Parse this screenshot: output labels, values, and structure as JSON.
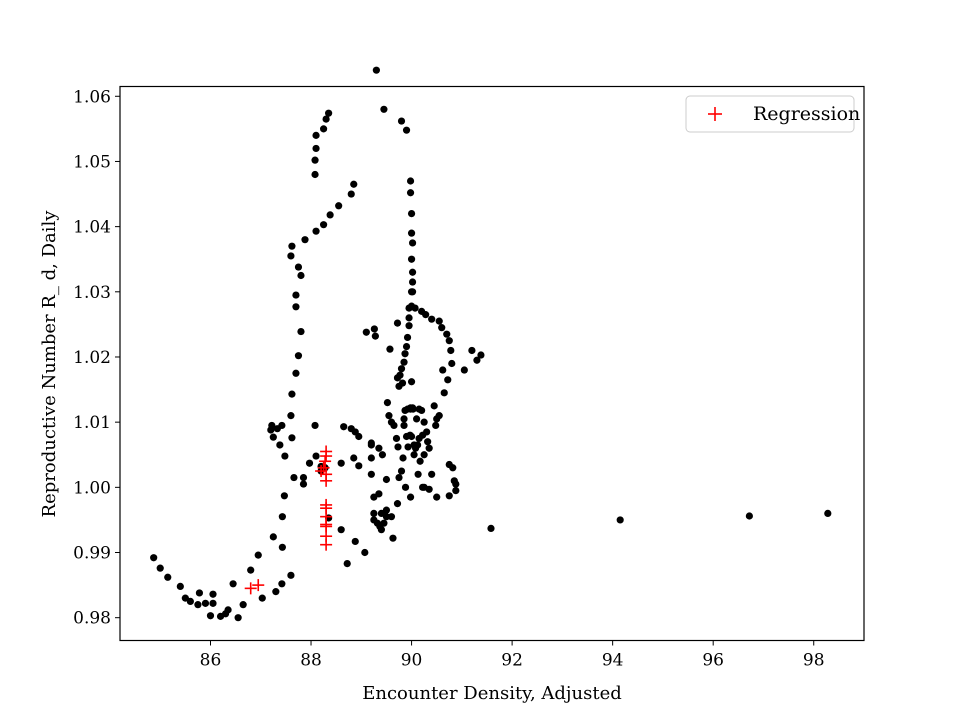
{
  "chart_data": {
    "type": "scatter",
    "title": "",
    "xlabel": "Encounter Density, Adjusted",
    "ylabel": "Reproductive Number R_ d, Daily",
    "xlim": [
      84.2,
      99.0
    ],
    "ylim": [
      0.9765,
      1.0615
    ],
    "xticks": [
      86,
      88,
      90,
      92,
      94,
      96,
      98
    ],
    "yticks": [
      0.98,
      0.99,
      1.0,
      1.01,
      1.02,
      1.03,
      1.04,
      1.05,
      1.06
    ],
    "xtick_labels": [
      "86",
      "88",
      "90",
      "92",
      "94",
      "96",
      "98"
    ],
    "ytick_labels": [
      "0.98",
      "0.99",
      "1.00",
      "1.01",
      "1.02",
      "1.03",
      "1.04",
      "1.05",
      "1.06"
    ],
    "grid": false,
    "legend_position": "top-right",
    "series": [
      {
        "marker": "dot",
        "color": "#000000",
        "points": [
          [
            84.87,
            0.9892
          ],
          [
            85.0,
            0.9876
          ],
          [
            85.15,
            0.9862
          ],
          [
            85.4,
            0.9848
          ],
          [
            85.5,
            0.983
          ],
          [
            85.6,
            0.9825
          ],
          [
            85.75,
            0.982
          ],
          [
            85.9,
            0.9822
          ],
          [
            85.78,
            0.9838
          ],
          [
            86.0,
            0.9803
          ],
          [
            86.05,
            0.9822
          ],
          [
            86.05,
            0.9836
          ],
          [
            86.2,
            0.9802
          ],
          [
            86.3,
            0.9806
          ],
          [
            86.35,
            0.9812
          ],
          [
            86.45,
            0.9852
          ],
          [
            86.55,
            0.98
          ],
          [
            86.65,
            0.982
          ],
          [
            86.8,
            0.9873
          ],
          [
            86.95,
            0.9896
          ],
          [
            87.03,
            0.983
          ],
          [
            87.25,
            0.9924
          ],
          [
            87.3,
            0.984
          ],
          [
            87.42,
            0.9852
          ],
          [
            87.43,
            0.9908
          ],
          [
            87.43,
            0.9955
          ],
          [
            87.47,
            0.9987
          ],
          [
            87.6,
            0.9865
          ],
          [
            87.66,
            1.0015
          ],
          [
            87.85,
            1.0015
          ],
          [
            87.85,
            1.0005
          ],
          [
            87.97,
            1.0037
          ],
          [
            88.1,
            1.0048
          ],
          [
            88.2,
            1.0032
          ],
          [
            88.2,
            1.0025
          ],
          [
            88.28,
            1.003
          ],
          [
            87.2,
            1.0088
          ],
          [
            87.22,
            1.0095
          ],
          [
            87.25,
            1.0077
          ],
          [
            87.33,
            1.009
          ],
          [
            87.38,
            1.0065
          ],
          [
            87.42,
            1.0095
          ],
          [
            87.48,
            1.0048
          ],
          [
            87.62,
            1.0076
          ],
          [
            87.6,
            1.011
          ],
          [
            87.62,
            1.0143
          ],
          [
            87.7,
            1.0175
          ],
          [
            87.75,
            1.0202
          ],
          [
            87.8,
            1.0239
          ],
          [
            87.7,
            1.0277
          ],
          [
            87.7,
            1.0295
          ],
          [
            87.8,
            1.0325
          ],
          [
            87.75,
            1.0338
          ],
          [
            87.6,
            1.0355
          ],
          [
            87.62,
            1.037
          ],
          [
            87.88,
            1.038
          ],
          [
            88.08,
            1.048
          ],
          [
            88.08,
            1.0502
          ],
          [
            88.1,
            1.052
          ],
          [
            88.1,
            1.054
          ],
          [
            88.25,
            1.055
          ],
          [
            88.3,
            1.0565
          ],
          [
            88.35,
            1.0574
          ],
          [
            88.1,
            1.0393
          ],
          [
            88.25,
            1.0403
          ],
          [
            88.38,
            1.0418
          ],
          [
            88.55,
            1.0432
          ],
          [
            88.8,
            1.045
          ],
          [
            88.85,
            1.0465
          ],
          [
            88.08,
            1.0095
          ],
          [
            88.35,
            0.9953
          ],
          [
            88.6,
            0.9935
          ],
          [
            88.6,
            1.0037
          ],
          [
            88.65,
            1.0093
          ],
          [
            88.72,
            0.9883
          ],
          [
            88.8,
            1.009
          ],
          [
            88.85,
            1.0045
          ],
          [
            88.88,
            1.0085
          ],
          [
            88.88,
            0.9917
          ],
          [
            88.95,
            1.0078
          ],
          [
            88.95,
            1.0033
          ],
          [
            89.07,
            0.99
          ],
          [
            89.1,
            1.0238
          ],
          [
            89.2,
            1.0068
          ],
          [
            89.2,
            1.0045
          ],
          [
            89.2,
            1.002
          ],
          [
            89.25,
            0.9985
          ],
          [
            89.25,
            0.996
          ],
          [
            89.25,
            0.995
          ],
          [
            89.26,
            1.0243
          ],
          [
            89.28,
            1.0232
          ],
          [
            89.3,
            1.064
          ],
          [
            89.32,
            0.9945
          ],
          [
            89.35,
            0.999
          ],
          [
            89.35,
            1.006
          ],
          [
            89.37,
            0.994
          ],
          [
            89.4,
            0.9935
          ],
          [
            89.4,
            0.996
          ],
          [
            89.42,
            1.005
          ],
          [
            89.45,
            1.058
          ],
          [
            89.45,
            0.9945
          ],
          [
            89.5,
            0.9955
          ],
          [
            89.5,
            0.9965
          ],
          [
            89.52,
            1.013
          ],
          [
            89.55,
            1.011
          ],
          [
            89.57,
            1.0212
          ],
          [
            89.6,
            0.9955
          ],
          [
            89.6,
            1.01
          ],
          [
            89.63,
            0.9922
          ],
          [
            89.65,
            1.0095
          ],
          [
            89.7,
            1.0075
          ],
          [
            89.72,
            1.0252
          ],
          [
            89.72,
            1.0168
          ],
          [
            89.72,
            0.9975
          ],
          [
            89.73,
            1.0062
          ],
          [
            89.75,
            1.0155
          ],
          [
            89.77,
            1.0172
          ],
          [
            89.8,
            1.0562
          ],
          [
            89.8,
            1.0182
          ],
          [
            89.82,
            1.016
          ],
          [
            89.83,
            1.0045
          ],
          [
            89.85,
            1.0192
          ],
          [
            89.85,
            1.0095
          ],
          [
            89.85,
            1.0105
          ],
          [
            89.87,
            1.0205
          ],
          [
            89.87,
            1.0118
          ],
          [
            89.88,
            1.0
          ],
          [
            89.9,
            1.0548
          ],
          [
            89.9,
            1.0216
          ],
          [
            89.9,
            1.0078
          ],
          [
            89.92,
            1.023
          ],
          [
            89.92,
            1.012
          ],
          [
            89.93,
            1.0062
          ],
          [
            89.95,
            1.0275
          ],
          [
            89.95,
            1.0248
          ],
          [
            89.95,
            1.026
          ],
          [
            89.97,
            1.008
          ],
          [
            89.98,
            1.047
          ],
          [
            89.98,
            1.0452
          ],
          [
            89.98,
            1.012
          ],
          [
            89.98,
            1.0122
          ],
          [
            89.98,
            0.9985
          ],
          [
            90.0,
            1.042
          ],
          [
            90.0,
            1.039
          ],
          [
            90.0,
            1.035
          ],
          [
            90.0,
            1.03
          ],
          [
            90.0,
            1.0278
          ],
          [
            90.0,
            1.0162
          ],
          [
            90.0,
            1.0078
          ],
          [
            90.02,
            1.0375
          ],
          [
            90.02,
            1.033
          ],
          [
            90.02,
            1.0315
          ],
          [
            90.02,
            1.03
          ],
          [
            90.02,
            1.0122
          ],
          [
            90.03,
            1.012
          ],
          [
            90.05,
            1.0065
          ],
          [
            90.05,
            1.005
          ],
          [
            90.07,
            1.0275
          ],
          [
            90.08,
            1.006
          ],
          [
            90.1,
            1.0105
          ],
          [
            90.12,
            1.0065
          ],
          [
            90.13,
            1.002
          ],
          [
            90.15,
            1.012
          ],
          [
            90.15,
            1.0075
          ],
          [
            90.17,
            1.004
          ],
          [
            90.2,
            1.027
          ],
          [
            90.2,
            1.0118
          ],
          [
            90.22,
            1.008
          ],
          [
            90.22,
            1.0
          ],
          [
            90.25,
            1.01
          ],
          [
            90.25,
            1.005
          ],
          [
            90.28,
            1.0265
          ],
          [
            90.3,
            1.0085
          ],
          [
            90.32,
            1.007
          ],
          [
            90.35,
            1.006
          ],
          [
            90.4,
            1.0258
          ],
          [
            90.4,
            1.002
          ],
          [
            90.45,
            1.0125
          ],
          [
            90.48,
            1.0095
          ],
          [
            90.5,
            1.0105
          ],
          [
            90.55,
            1.011
          ],
          [
            90.55,
            1.0255
          ],
          [
            90.6,
            1.0245
          ],
          [
            90.62,
            1.018
          ],
          [
            90.65,
            1.0145
          ],
          [
            90.7,
            1.0235
          ],
          [
            90.72,
            1.0165
          ],
          [
            90.75,
            1.0035
          ],
          [
            90.75,
            1.0225
          ],
          [
            90.78,
            1.021
          ],
          [
            90.8,
            1.019
          ],
          [
            90.82,
            1.003
          ],
          [
            90.85,
            1.001
          ],
          [
            90.88,
            1.0005
          ],
          [
            90.88,
            0.9995
          ],
          [
            90.75,
            0.9987
          ],
          [
            90.5,
            0.9985
          ],
          [
            90.35,
            0.9997
          ],
          [
            91.05,
            1.018
          ],
          [
            91.2,
            1.021
          ],
          [
            91.3,
            1.0195
          ],
          [
            91.38,
            1.0203
          ],
          [
            90.25,
            1.0
          ],
          [
            89.2,
            1.0065
          ],
          [
            89.5,
            1.0012
          ],
          [
            89.75,
            1.0015
          ],
          [
            89.8,
            1.0025
          ],
          [
            91.58,
            0.9937
          ],
          [
            94.15,
            0.995
          ],
          [
            96.72,
            0.9956
          ],
          [
            98.28,
            0.996
          ]
        ]
      },
      {
        "name": "Regression",
        "marker": "plus",
        "color": "#ff0000",
        "points": [
          [
            86.8,
            0.9845
          ],
          [
            86.95,
            0.985
          ],
          [
            88.2,
            1.0025
          ],
          [
            88.25,
            1.003
          ],
          [
            88.28,
            1.004
          ],
          [
            88.3,
            1.0055
          ],
          [
            88.3,
            1.0048
          ],
          [
            88.3,
            1.002
          ],
          [
            88.3,
            1.001
          ],
          [
            88.3,
            0.9973
          ],
          [
            88.3,
            0.9968
          ],
          [
            88.3,
            0.9955
          ],
          [
            88.3,
            0.9943
          ],
          [
            88.3,
            0.994
          ],
          [
            88.3,
            0.9925
          ],
          [
            88.3,
            0.9912
          ]
        ]
      }
    ]
  }
}
